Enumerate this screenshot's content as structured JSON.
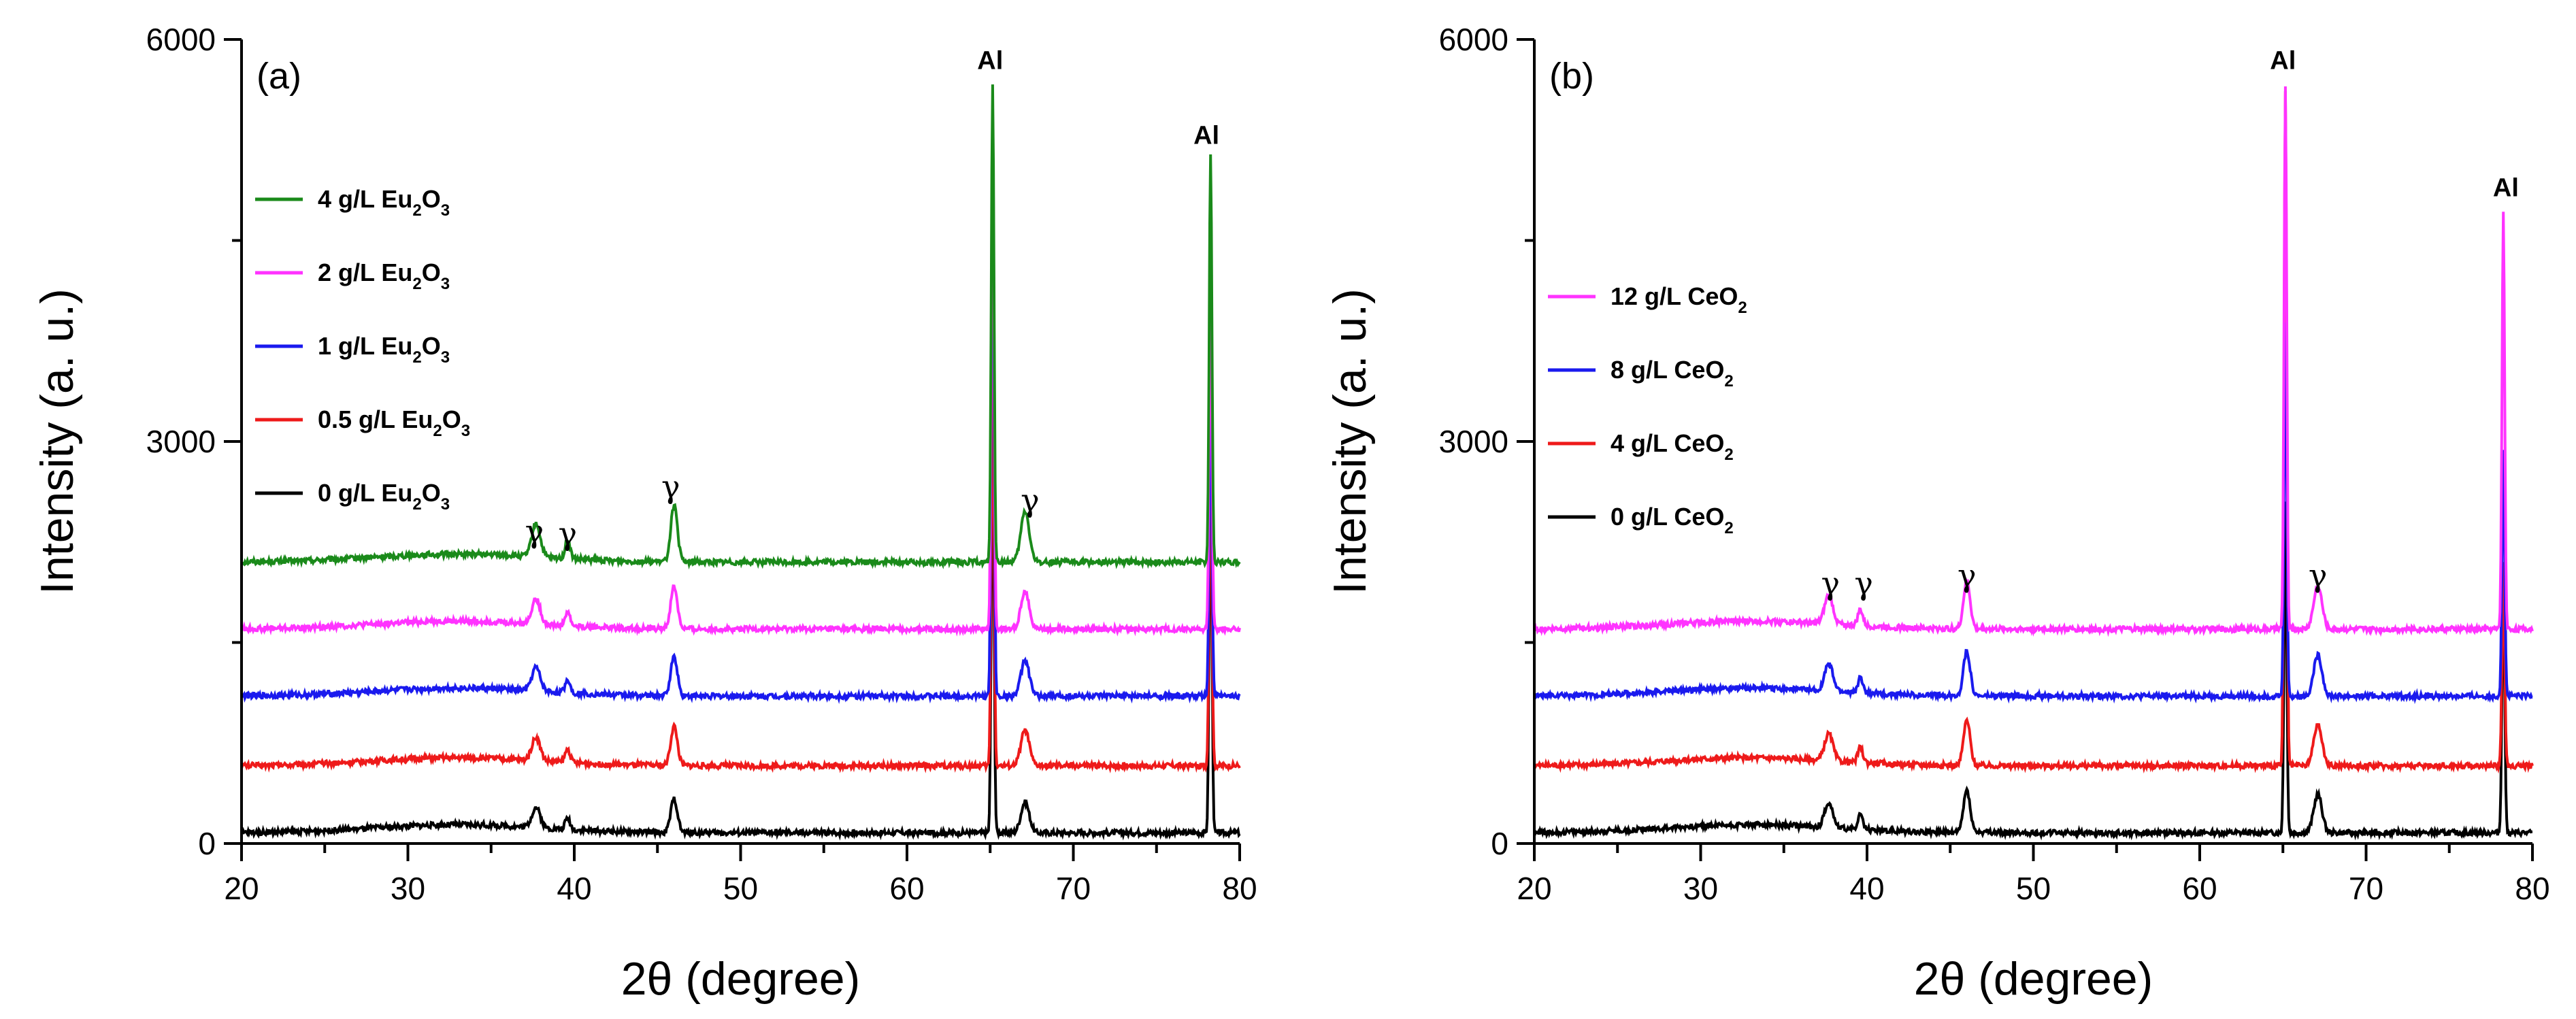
{
  "chart_data": [
    {
      "type": "line",
      "panel_label": "(a)",
      "xlabel": "2θ (degree)",
      "ylabel": "Intensity (a. u.)",
      "xlim": [
        20,
        80
      ],
      "ylim": [
        0,
        6000
      ],
      "x_ticks": [
        20,
        30,
        40,
        50,
        60,
        70,
        80
      ],
      "y_ticks": [
        0,
        3000,
        6000
      ],
      "legend_position": "upper-left",
      "series": [
        {
          "name": "4 g/L Eu2O3",
          "label_main": "4 g/L Eu",
          "sub1": "2",
          "mid": "O",
          "sub2": "3",
          "color": "#1a8a1a",
          "baseline": 2100,
          "alpeak1": 5680,
          "alpeak2": 5150,
          "gamma_scale": 1.0
        },
        {
          "name": "2 g/L Eu2O3",
          "label_main": "2 g/L Eu",
          "sub1": "2",
          "mid": "O",
          "sub2": "3",
          "color": "#ff33ff",
          "baseline": 1600,
          "alpeak1": 5500,
          "alpeak2": 4300,
          "gamma_scale": 0.75
        },
        {
          "name": "1 g/L Eu2O3",
          "label_main": "1 g/L Eu",
          "sub1": "2",
          "mid": "O",
          "sub2": "3",
          "color": "#1a1aee",
          "baseline": 1100,
          "alpeak1": 5400,
          "alpeak2": 3600,
          "gamma_scale": 0.7
        },
        {
          "name": "0.5 g/L Eu2O3",
          "label_main": "0.5 g/L Eu",
          "sub1": "2",
          "mid": "O",
          "sub2": "3",
          "color": "#ee1a1a",
          "baseline": 580,
          "alpeak1": 3750,
          "alpeak2": 3200,
          "gamma_scale": 0.7
        },
        {
          "name": "0 g/L Eu2O3",
          "label_main": "0 g/L Eu",
          "sub1": "2",
          "mid": "O",
          "sub2": "3",
          "color": "#000000",
          "baseline": 80,
          "alpeak1": 3200,
          "alpeak2": 2850,
          "gamma_scale": 0.6
        }
      ],
      "annotations": [
        {
          "text": "γ",
          "x": 37.6,
          "y": 2250,
          "kind": "gamma"
        },
        {
          "text": "γ",
          "x": 39.6,
          "y": 2230,
          "kind": "gamma"
        },
        {
          "text": "γ",
          "x": 45.8,
          "y": 2580,
          "kind": "gamma"
        },
        {
          "text": "γ",
          "x": 67.4,
          "y": 2480,
          "kind": "gamma"
        },
        {
          "text": "Al",
          "x": 65.0,
          "y": 5780,
          "kind": "al"
        },
        {
          "text": "Al",
          "x": 78.0,
          "y": 5220,
          "kind": "al"
        }
      ]
    },
    {
      "type": "line",
      "panel_label": "(b)",
      "xlabel": "2θ (degree)",
      "ylabel": "Intensity (a. u.)",
      "xlim": [
        20,
        80
      ],
      "ylim": [
        0,
        6000
      ],
      "x_ticks": [
        20,
        30,
        40,
        50,
        60,
        70,
        80
      ],
      "y_ticks": [
        0,
        3000,
        6000
      ],
      "legend_position": "middle-left",
      "series": [
        {
          "name": "12 g/L CeO2",
          "label_main": "12 g/L CeO",
          "sub1": "2",
          "mid": "",
          "sub2": "",
          "color": "#ff33ff",
          "baseline": 1600,
          "alpeak1": 5650,
          "alpeak2": 4700,
          "gamma_scale": 0.85
        },
        {
          "name": "8 g/L CeO2",
          "label_main": "8 g/L CeO",
          "sub1": "2",
          "mid": "",
          "sub2": "",
          "color": "#1a1aee",
          "baseline": 1100,
          "alpeak1": 3900,
          "alpeak2": 2950,
          "gamma_scale": 0.8
        },
        {
          "name": "4 g/L CeO2",
          "label_main": "4 g/L CeO",
          "sub1": "2",
          "mid": "",
          "sub2": "",
          "color": "#ee1a1a",
          "baseline": 580,
          "alpeak1": 5600,
          "alpeak2": 2100,
          "gamma_scale": 0.8
        },
        {
          "name": "0 g/L CeO2",
          "label_main": "0 g/L CeO",
          "sub1": "2",
          "mid": "",
          "sub2": "",
          "color": "#000000",
          "baseline": 80,
          "alpeak1": 2550,
          "alpeak2": 2050,
          "gamma_scale": 0.75
        }
      ],
      "annotations": [
        {
          "text": "γ",
          "x": 37.8,
          "y": 1860,
          "kind": "gamma"
        },
        {
          "text": "γ",
          "x": 39.8,
          "y": 1860,
          "kind": "gamma"
        },
        {
          "text": "γ",
          "x": 46.0,
          "y": 1920,
          "kind": "gamma"
        },
        {
          "text": "γ",
          "x": 67.1,
          "y": 1920,
          "kind": "gamma"
        },
        {
          "text": "Al",
          "x": 65.0,
          "y": 5780,
          "kind": "al"
        },
        {
          "text": "Al",
          "x": 78.4,
          "y": 4830,
          "kind": "al"
        }
      ]
    }
  ]
}
